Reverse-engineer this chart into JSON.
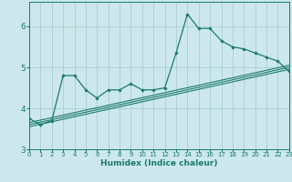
{
  "title": "",
  "xlabel": "Humidex (Indice chaleur)",
  "ylabel": "",
  "background_color": "#cce8ec",
  "grid_color": "#aacdd4",
  "line_color": "#1a7a6e",
  "x_data": [
    0,
    1,
    2,
    3,
    4,
    5,
    6,
    7,
    8,
    9,
    10,
    11,
    12,
    13,
    14,
    15,
    16,
    17,
    18,
    19,
    20,
    21,
    22,
    23
  ],
  "y_data": [
    3.75,
    3.6,
    3.7,
    4.8,
    4.8,
    4.45,
    4.25,
    4.45,
    4.45,
    4.6,
    4.45,
    4.45,
    4.5,
    5.35,
    6.3,
    5.95,
    5.95,
    5.65,
    5.5,
    5.45,
    5.35,
    5.25,
    5.15,
    4.9
  ],
  "trend_lines": [
    {
      "x": [
        0,
        23
      ],
      "y": [
        3.65,
        5.05
      ]
    },
    {
      "x": [
        0,
        23
      ],
      "y": [
        3.6,
        5.0
      ]
    },
    {
      "x": [
        0,
        23
      ],
      "y": [
        3.55,
        4.95
      ]
    }
  ],
  "xlim": [
    0,
    23
  ],
  "ylim": [
    3.0,
    6.6
  ],
  "yticks": [
    3,
    4,
    5,
    6
  ],
  "xticks": [
    0,
    1,
    2,
    3,
    4,
    5,
    6,
    7,
    8,
    9,
    10,
    11,
    12,
    13,
    14,
    15,
    16,
    17,
    18,
    19,
    20,
    21,
    22,
    23
  ]
}
